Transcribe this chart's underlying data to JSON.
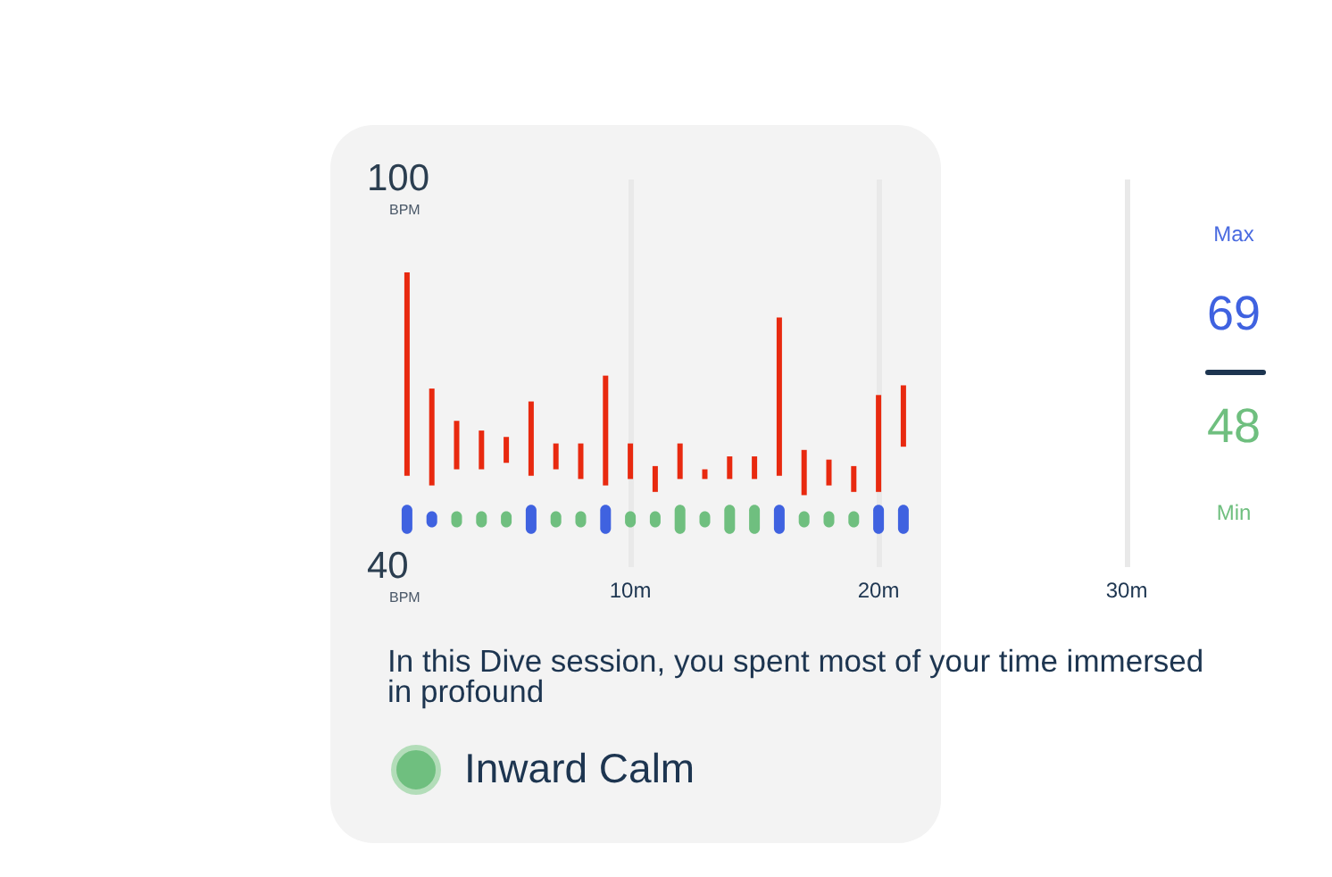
{
  "chart_data": {
    "type": "bar",
    "categories": [
      null,
      null,
      null,
      null,
      null,
      null,
      null,
      null,
      null,
      "10m",
      null,
      null,
      null,
      null,
      null,
      null,
      null,
      null,
      null,
      "20m",
      null,
      null,
      null,
      null,
      null,
      null,
      null,
      null,
      null,
      "30m"
    ],
    "ylim": [
      40,
      100
    ],
    "yticks": [
      40,
      100
    ],
    "ylabel": "BPM",
    "grid": "x",
    "series": [
      {
        "color": "#e8290f",
        "base": [
          54,
          52.5,
          55,
          55,
          56,
          54,
          55,
          53.5,
          52.5,
          53.5,
          51.5,
          53.5,
          53.5,
          53.5,
          53.5,
          54,
          51,
          52.5,
          51.5,
          51.5,
          58.5,
          null,
          null,
          null,
          null,
          null,
          null,
          null,
          null,
          null
        ],
        "values": [
          31.5,
          15,
          7.5,
          6,
          4,
          11.5,
          4,
          5.5,
          17,
          5.5,
          4,
          5.5,
          1.5,
          3.5,
          3.5,
          24.5,
          7,
          4,
          4,
          15,
          9.5,
          null,
          null,
          null,
          null,
          null,
          null,
          null,
          null,
          null
        ]
      },
      {
        "colors": [
          "#3f62e0",
          "#3f62e0",
          "#6fbf7f",
          "#6fbf7f",
          "#6fbf7f",
          "#3f62e0",
          "#6fbf7f",
          "#6fbf7f",
          "#3f62e0",
          "#6fbf7f",
          "#6fbf7f",
          "#6fbf7f",
          "#6fbf7f",
          "#6fbf7f",
          "#6fbf7f",
          "#3f62e0",
          "#6fbf7f",
          "#6fbf7f",
          "#6fbf7f",
          "#3f62e0",
          "#3f62e0",
          null,
          null,
          null,
          null,
          null,
          null,
          null,
          null,
          null
        ],
        "base": [
          45,
          46,
          46,
          46,
          46,
          45,
          46,
          46,
          45,
          46,
          46,
          45,
          46,
          45,
          45,
          45,
          46,
          46,
          46,
          45,
          45,
          null,
          null,
          null,
          null,
          null,
          null,
          null,
          null,
          null
        ],
        "values": [
          4.5,
          2.5,
          2.5,
          2.5,
          2.5,
          4.5,
          2.5,
          2.5,
          4.5,
          2.5,
          2.5,
          4.5,
          2.5,
          4.5,
          4.5,
          4.5,
          2.5,
          2.5,
          2.5,
          4.5,
          4.5,
          null,
          null,
          null,
          null,
          null,
          null,
          null,
          null,
          null
        ]
      }
    ],
    "annotations": [
      "Max",
      "69",
      "48",
      "Min",
      "In this Dive session, you spent most of your time immersed in profound",
      "Inward Calm"
    ]
  }
}
